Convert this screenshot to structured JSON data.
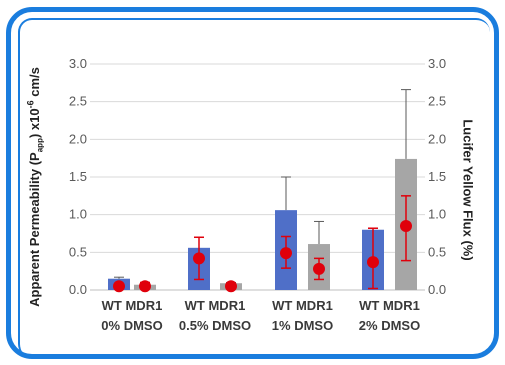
{
  "chart_data": {
    "type": "bar",
    "ylabel_left": {
      "pre": "Apparent Permeability (P",
      "sub": "app",
      "mid": ") x10",
      "sup": "-6",
      "post": " cm/s"
    },
    "ylabel_right": "Lucifer Yellow Flux (%)",
    "ylim_left": [
      0,
      3.0
    ],
    "ylim_right": [
      0,
      3.0
    ],
    "yticks": [
      "0.0",
      "0.5",
      "1.0",
      "1.5",
      "2.0",
      "2.5",
      "3.0"
    ],
    "groups": [
      {
        "line1": "WT MDR1",
        "line2": "0% DMSO"
      },
      {
        "line1": "WT MDR1",
        "line2": "0.5% DMSO"
      },
      {
        "line1": "WT MDR1",
        "line2": "1% DMSO"
      },
      {
        "line1": "WT MDR1",
        "line2": "2% DMSO"
      }
    ],
    "bar_series": [
      {
        "key": "WT",
        "color": "#4f6fc8",
        "values": [
          0.15,
          0.56,
          1.06,
          0.8
        ],
        "err_upper": [
          0.17,
          0.7,
          1.5,
          0.82
        ]
      },
      {
        "key": "MDR1",
        "color": "#a6a6a6",
        "values": [
          0.07,
          0.09,
          0.61,
          1.74
        ],
        "err_upper": [
          0.08,
          0.1,
          0.91,
          2.66
        ]
      }
    ],
    "flux_series": {
      "axis": "right",
      "color": "#e0000b",
      "points": [
        {
          "x": 0,
          "y": 0.05,
          "lo": 0.02,
          "hi": 0.08
        },
        {
          "x": 1,
          "y": 0.05,
          "lo": 0.03,
          "hi": 0.1
        },
        {
          "x": 2,
          "y": 0.42,
          "lo": 0.14,
          "hi": 0.7
        },
        {
          "x": 3,
          "y": 0.05,
          "lo": 0.03,
          "hi": 0.07
        },
        {
          "x": 4,
          "y": 0.49,
          "lo": 0.29,
          "hi": 0.71
        },
        {
          "x": 5,
          "y": 0.28,
          "lo": 0.14,
          "hi": 0.42
        },
        {
          "x": 6,
          "y": 0.37,
          "lo": 0.02,
          "hi": 0.82
        },
        {
          "x": 7,
          "y": 0.85,
          "lo": 0.39,
          "hi": 1.25
        }
      ]
    },
    "grid": true,
    "colors": {
      "frame": "#1a7dde",
      "grid": "#d9d9d9",
      "axis_text": "#595959"
    }
  }
}
